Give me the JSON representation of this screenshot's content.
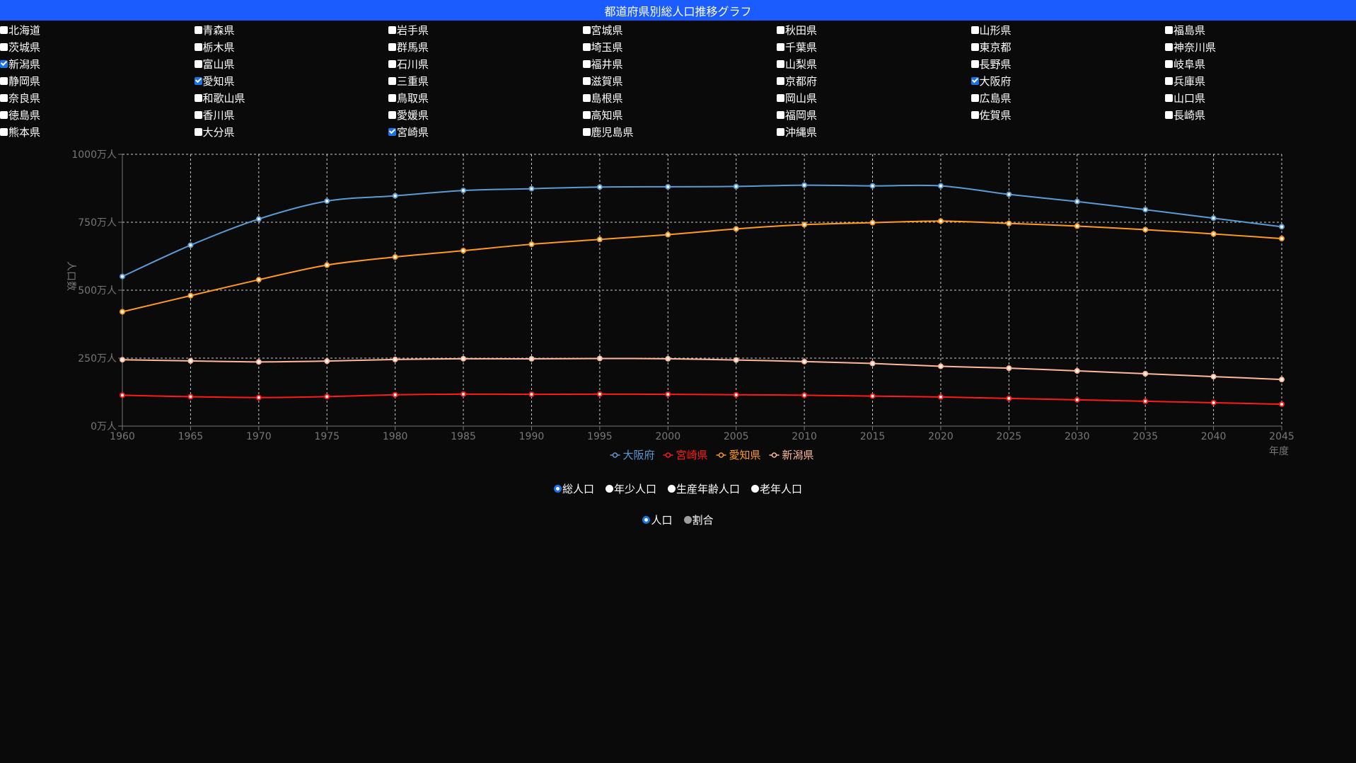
{
  "header": {
    "title": "都道府県別総人口推移グラフ"
  },
  "prefectures": [
    {
      "name": "北海道",
      "checked": false
    },
    {
      "name": "青森県",
      "checked": false
    },
    {
      "name": "岩手県",
      "checked": false
    },
    {
      "name": "宮城県",
      "checked": false
    },
    {
      "name": "秋田県",
      "checked": false
    },
    {
      "name": "山形県",
      "checked": false
    },
    {
      "name": "福島県",
      "checked": false
    },
    {
      "name": "茨城県",
      "checked": false
    },
    {
      "name": "栃木県",
      "checked": false
    },
    {
      "name": "群馬県",
      "checked": false
    },
    {
      "name": "埼玉県",
      "checked": false
    },
    {
      "name": "千葉県",
      "checked": false
    },
    {
      "name": "東京都",
      "checked": false
    },
    {
      "name": "神奈川県",
      "checked": false
    },
    {
      "name": "新潟県",
      "checked": true
    },
    {
      "name": "富山県",
      "checked": false
    },
    {
      "name": "石川県",
      "checked": false
    },
    {
      "name": "福井県",
      "checked": false
    },
    {
      "name": "山梨県",
      "checked": false
    },
    {
      "name": "長野県",
      "checked": false
    },
    {
      "name": "岐阜県",
      "checked": false
    },
    {
      "name": "静岡県",
      "checked": false
    },
    {
      "name": "愛知県",
      "checked": true
    },
    {
      "name": "三重県",
      "checked": false
    },
    {
      "name": "滋賀県",
      "checked": false
    },
    {
      "name": "京都府",
      "checked": false
    },
    {
      "name": "大阪府",
      "checked": true
    },
    {
      "name": "兵庫県",
      "checked": false
    },
    {
      "name": "奈良県",
      "checked": false
    },
    {
      "name": "和歌山県",
      "checked": false
    },
    {
      "name": "鳥取県",
      "checked": false
    },
    {
      "name": "島根県",
      "checked": false
    },
    {
      "name": "岡山県",
      "checked": false
    },
    {
      "name": "広島県",
      "checked": false
    },
    {
      "name": "山口県",
      "checked": false
    },
    {
      "name": "徳島県",
      "checked": false
    },
    {
      "name": "香川県",
      "checked": false
    },
    {
      "name": "愛媛県",
      "checked": false
    },
    {
      "name": "高知県",
      "checked": false
    },
    {
      "name": "福岡県",
      "checked": false
    },
    {
      "name": "佐賀県",
      "checked": false
    },
    {
      "name": "長崎県",
      "checked": false
    },
    {
      "name": "熊本県",
      "checked": false
    },
    {
      "name": "大分県",
      "checked": false
    },
    {
      "name": "宮崎県",
      "checked": true
    },
    {
      "name": "鹿児島県",
      "checked": false
    },
    {
      "name": "沖縄県",
      "checked": false
    }
  ],
  "chart_data": {
    "type": "line",
    "xlabel": "年度",
    "ylabel": "人口数",
    "x": [
      1960,
      1965,
      1970,
      1975,
      1980,
      1985,
      1990,
      1995,
      2000,
      2005,
      2010,
      2015,
      2020,
      2025,
      2030,
      2035,
      2040,
      2045
    ],
    "x_tick_labels": [
      "1960",
      "1965",
      "1970",
      "1975",
      "1980",
      "1985",
      "1990",
      "1995",
      "2000",
      "2005",
      "2010",
      "2015",
      "2020",
      "2025",
      "2030",
      "2035",
      "2040",
      "2045"
    ],
    "ylim": [
      0,
      10000000
    ],
    "y_ticks": [
      0,
      2500000,
      5000000,
      7500000,
      10000000
    ],
    "y_tick_labels": [
      "0万人",
      "250万人",
      "500万人",
      "750万人",
      "1000万人"
    ],
    "grid": true,
    "legend_position": "bottom-center",
    "series": [
      {
        "name": "大阪府",
        "color": "#5b9bd5",
        "values": [
          5505000,
          6657000,
          7620000,
          8279000,
          8473000,
          8668000,
          8735000,
          8797000,
          8805000,
          8817000,
          8865000,
          8839000,
          8838000,
          8526000,
          8262000,
          7963000,
          7649000,
          7335000
        ]
      },
      {
        "name": "宮崎県",
        "color": "#ff1a1a",
        "values": [
          1135000,
          1081000,
          1051000,
          1085000,
          1152000,
          1176000,
          1169000,
          1176000,
          1170000,
          1153000,
          1135000,
          1104000,
          1070000,
          1019000,
          967000,
          914000,
          860000,
          805000
        ]
      },
      {
        "name": "愛知県",
        "color": "#ff9a1f",
        "values": [
          4206000,
          4799000,
          5386000,
          5924000,
          6222000,
          6455000,
          6691000,
          6868000,
          7043000,
          7255000,
          7411000,
          7483000,
          7542000,
          7457000,
          7359000,
          7227000,
          7070000,
          6899000
        ]
      },
      {
        "name": "新潟県",
        "color": "#ffb899",
        "values": [
          2442000,
          2399000,
          2361000,
          2392000,
          2451000,
          2478000,
          2475000,
          2488000,
          2476000,
          2431000,
          2374000,
          2304000,
          2201000,
          2131000,
          2031000,
          1927000,
          1821000,
          1715000
        ]
      }
    ]
  },
  "population_types": {
    "options": [
      "総人口",
      "年少人口",
      "生産年齢人口",
      "老年人口"
    ],
    "selected": 0
  },
  "display_modes": {
    "options": [
      "人口",
      "割合"
    ],
    "selected": 0
  }
}
